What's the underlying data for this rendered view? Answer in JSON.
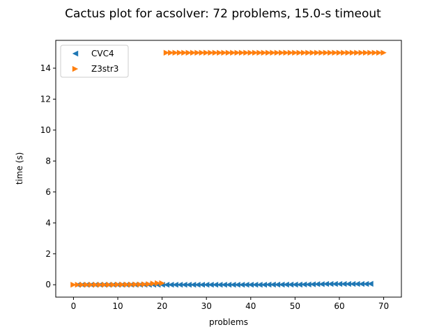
{
  "chart_data": {
    "type": "scatter",
    "title": "Cactus plot for acsolver: 72 problems, 15.0-s timeout",
    "xlabel": "problems",
    "ylabel": "time (s)",
    "xlim": [
      -4,
      74
    ],
    "ylim": [
      -0.8,
      15.8
    ],
    "xticks": [
      0,
      10,
      20,
      30,
      40,
      50,
      60,
      70
    ],
    "yticks": [
      0,
      2,
      4,
      6,
      8,
      10,
      12,
      14
    ],
    "grid": false,
    "legend_position": "top-left",
    "series": [
      {
        "name": "CVC4",
        "color": "#1f77b4",
        "marker": "triangle-left",
        "x": [
          1,
          2,
          3,
          4,
          5,
          6,
          7,
          8,
          9,
          10,
          11,
          12,
          13,
          14,
          15,
          16,
          17,
          18,
          19,
          20,
          21,
          22,
          23,
          24,
          25,
          26,
          27,
          28,
          29,
          30,
          31,
          32,
          33,
          34,
          35,
          36,
          37,
          38,
          39,
          40,
          41,
          42,
          43,
          44,
          45,
          46,
          47,
          48,
          49,
          50,
          51,
          52,
          53,
          54,
          55,
          56,
          57,
          58,
          59,
          60,
          61,
          62,
          63,
          64,
          65,
          66,
          67
        ],
        "y": [
          0.0,
          0.0,
          0.0,
          0.0,
          0.0,
          0.0,
          0.0,
          0.0,
          0.0,
          0.0,
          0.0,
          0.0,
          0.0,
          0.0,
          0.0,
          0.0,
          0.0,
          0.0,
          0.0,
          0.0,
          0.0,
          0.0,
          0.0,
          0.0,
          0.0,
          0.0,
          0.0,
          0.0,
          0.0,
          0.0,
          0.0,
          0.0,
          0.0,
          0.0,
          0.0,
          0.0,
          0.0,
          0.0,
          0.0,
          0.0,
          0.0,
          0.0,
          0.0,
          0.01,
          0.01,
          0.01,
          0.01,
          0.01,
          0.01,
          0.01,
          0.01,
          0.02,
          0.02,
          0.03,
          0.04,
          0.04,
          0.05,
          0.05,
          0.05,
          0.05,
          0.05,
          0.05,
          0.05,
          0.05,
          0.05,
          0.05,
          0.06
        ]
      },
      {
        "name": "Z3str3",
        "color": "#ff7f0e",
        "marker": "triangle-right",
        "x": [
          0,
          1,
          2,
          3,
          4,
          5,
          6,
          7,
          8,
          9,
          10,
          11,
          12,
          13,
          14,
          15,
          16,
          17,
          18,
          19,
          20,
          21,
          22,
          23,
          24,
          25,
          26,
          27,
          28,
          29,
          30,
          31,
          32,
          33,
          34,
          35,
          36,
          37,
          38,
          39,
          40,
          41,
          42,
          43,
          44,
          45,
          46,
          47,
          48,
          49,
          50,
          51,
          52,
          53,
          54,
          55,
          56,
          57,
          58,
          59,
          60,
          61,
          62,
          63,
          64,
          65,
          66,
          67,
          68,
          69,
          70
        ],
        "y": [
          0.0,
          0.0,
          0.0,
          0.0,
          0.0,
          0.0,
          0.0,
          0.0,
          0.0,
          0.0,
          0.01,
          0.01,
          0.01,
          0.01,
          0.02,
          0.02,
          0.03,
          0.04,
          0.08,
          0.1,
          0.1,
          15,
          15,
          15,
          15,
          15,
          15,
          15,
          15,
          15,
          15,
          15,
          15,
          15,
          15,
          15,
          15,
          15,
          15,
          15,
          15,
          15,
          15,
          15,
          15,
          15,
          15,
          15,
          15,
          15,
          15,
          15,
          15,
          15,
          15,
          15,
          15,
          15,
          15,
          15,
          15,
          15,
          15,
          15,
          15,
          15,
          15,
          15,
          15,
          15,
          15
        ]
      }
    ]
  }
}
